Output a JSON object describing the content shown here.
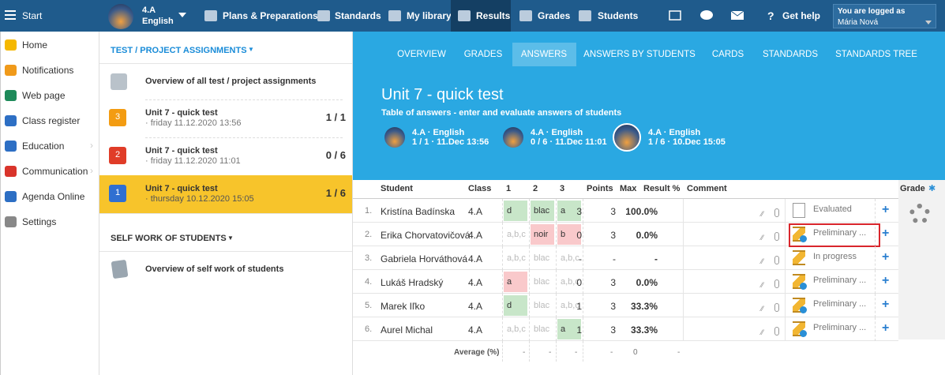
{
  "topbar": {
    "start": "Start",
    "class_name": "4.A",
    "class_subject": "English",
    "nav": [
      "Plans & Preparations",
      "Standards",
      "My library",
      "Results",
      "Grades",
      "Students"
    ],
    "active_nav": 3,
    "help": "Get help",
    "login_label": "You are logged as",
    "user": "Mária Nová"
  },
  "sidebar": [
    "Home",
    "Notifications",
    "Web page",
    "Class register",
    "Education",
    "Communication",
    "Agenda Online",
    "Settings"
  ],
  "assignments": {
    "heading": "TEST / PROJECT ASSIGNMENTS",
    "overview": "Overview of all test / project assignments",
    "items": [
      {
        "badge": "3",
        "color": "#f39c12",
        "title": "Unit 7 - quick test",
        "date": "· friday 11.12.2020 13:56",
        "score": "1 / 1"
      },
      {
        "badge": "2",
        "color": "#e03c28",
        "title": "Unit 7 - quick test",
        "date": "· friday 11.12.2020 11:01",
        "score": "0 / 6"
      },
      {
        "badge": "1",
        "color": "#2f6fd1",
        "title": "Unit 7 - quick test",
        "date": "· thursday 10.12.2020 15:05",
        "score": "1 / 6"
      }
    ],
    "active_item": 2,
    "self_heading": "SELF WORK OF STUDENTS",
    "self_overview": "Overview of self work of students"
  },
  "tabs": [
    "OVERVIEW",
    "GRADES",
    "ANSWERS",
    "ANSWERS BY STUDENTS",
    "CARDS",
    "STANDARDS",
    "STANDARDS TREE"
  ],
  "active_tab": 2,
  "header": {
    "title": "Unit 7 - quick test",
    "subtitle": "Table of answers - enter and evaluate answers of students",
    "chips": [
      {
        "class": "4.A · English",
        "info": "1 / 1 · 11.Dec 13:56"
      },
      {
        "class": "4.A · English",
        "info": "0 / 6 · 11.Dec 11:01"
      },
      {
        "class": "4.A · English",
        "info": "1 / 6 · 10.Dec 15:05"
      }
    ],
    "active_chip": 2
  },
  "table": {
    "columns": [
      "Student",
      "Class",
      "1",
      "2",
      "3",
      "Points",
      "Max",
      "Result %",
      "Comment"
    ],
    "grade": "Grade",
    "rows": [
      {
        "no": "1.",
        "student": "Kristína Badínska",
        "class": "4.A",
        "answers": [
          {
            "text": "d",
            "state": "correct"
          },
          {
            "text": "blac",
            "state": "correct"
          },
          {
            "text": "a",
            "state": "correct"
          }
        ],
        "points": 3,
        "max": 3,
        "result": "100.0%",
        "status": "Evaluated",
        "status_icon": "doc"
      },
      {
        "no": "2.",
        "student": "Erika Chorvatovičová",
        "class": "4.A",
        "answers": [
          {
            "text": "a,b,c",
            "state": "empty"
          },
          {
            "text": "noir",
            "state": "wrong"
          },
          {
            "text": "b",
            "state": "wrong"
          }
        ],
        "points": 0,
        "max": 3,
        "result": "0.0%",
        "status": "Preliminary ...",
        "status_icon": "hourglass-gear",
        "highlight": true
      },
      {
        "no": "3.",
        "student": "Gabriela Horváthová",
        "class": "4.A",
        "answers": [
          {
            "text": "a,b,c",
            "state": "empty"
          },
          {
            "text": "blac",
            "state": "empty"
          },
          {
            "text": "a,b,c",
            "state": "empty"
          }
        ],
        "points": "-",
        "max": "-",
        "result": "-",
        "status": "In progress",
        "status_icon": "hourglass"
      },
      {
        "no": "4.",
        "student": "Lukáš Hradský",
        "class": "4.A",
        "answers": [
          {
            "text": "a",
            "state": "wrong"
          },
          {
            "text": "blac",
            "state": "empty"
          },
          {
            "text": "a,b,c",
            "state": "empty"
          }
        ],
        "points": 0,
        "max": 3,
        "result": "0.0%",
        "status": "Preliminary ...",
        "status_icon": "hourglass-gear"
      },
      {
        "no": "5.",
        "student": "Marek Iľko",
        "class": "4.A",
        "answers": [
          {
            "text": "d",
            "state": "correct"
          },
          {
            "text": "blac",
            "state": "empty"
          },
          {
            "text": "a,b,c",
            "state": "empty"
          }
        ],
        "points": 1,
        "max": 3,
        "result": "33.3%",
        "status": "Preliminary ...",
        "status_icon": "hourglass-gear"
      },
      {
        "no": "6.",
        "student": "Aurel Michal",
        "class": "4.A",
        "answers": [
          {
            "text": "a,b,c",
            "state": "empty"
          },
          {
            "text": "blac",
            "state": "empty"
          },
          {
            "text": "a",
            "state": "correct"
          }
        ],
        "points": 1,
        "max": 3,
        "result": "33.3%",
        "status": "Preliminary ...",
        "status_icon": "hourglass-gear"
      }
    ],
    "average_label": "Average (%)",
    "average": [
      "-",
      "-",
      "-",
      "-",
      0,
      "-"
    ]
  }
}
